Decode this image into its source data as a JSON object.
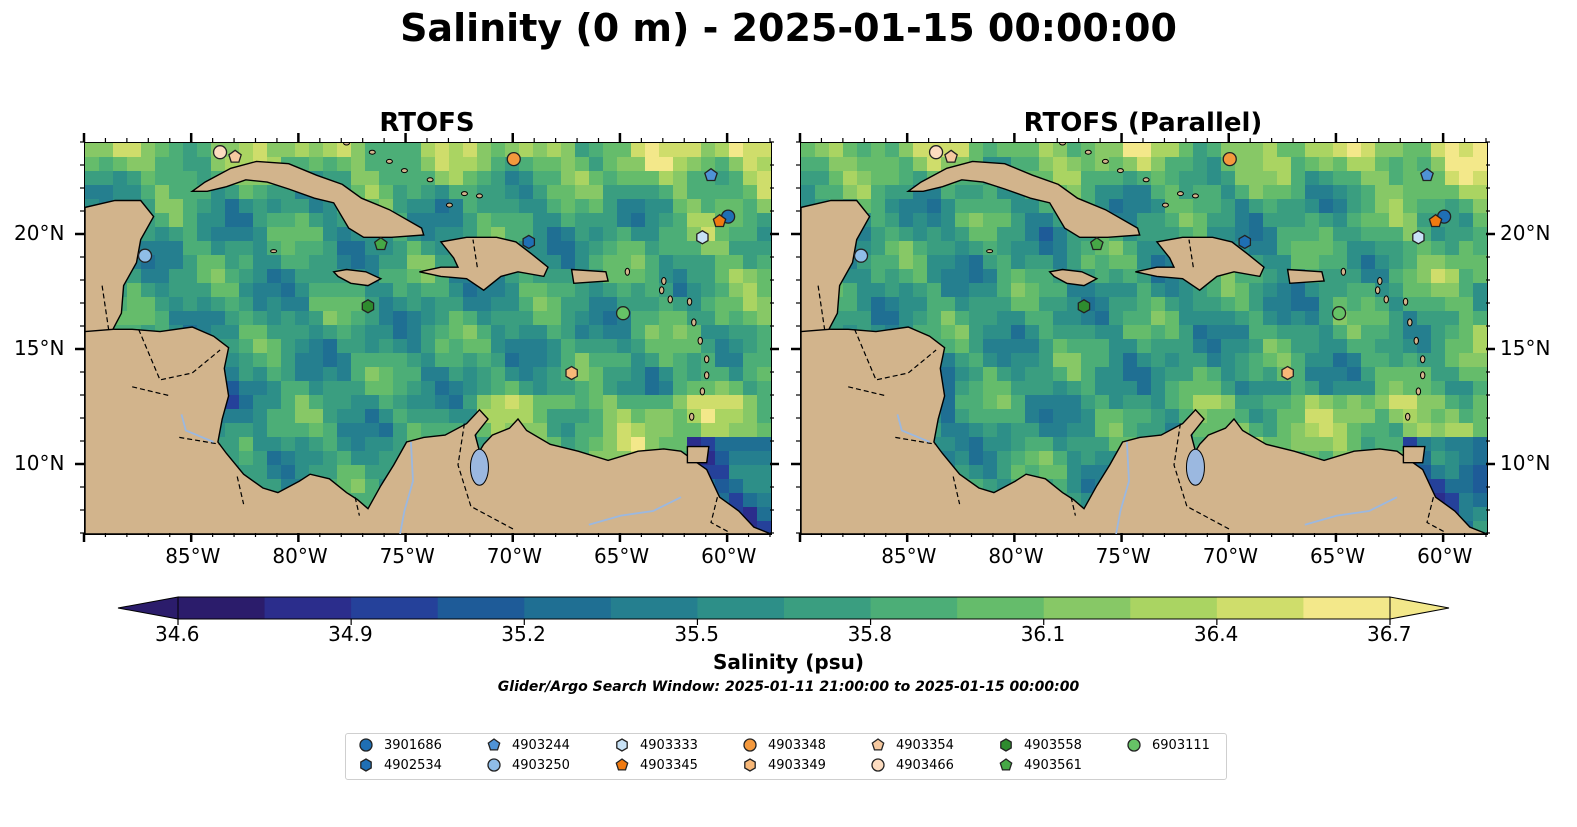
{
  "title": "Salinity (0 m) - 2025-01-15 00:00:00",
  "panels": [
    {
      "title": "RTOFS"
    },
    {
      "title": "RTOFS (Parallel)"
    }
  ],
  "map": {
    "lon_range": [
      -90,
      -58
    ],
    "lat_range": [
      7,
      24
    ],
    "lon_ticks": [
      "85°W",
      "80°W",
      "75°W",
      "70°W",
      "65°W",
      "60°W"
    ],
    "lat_ticks": [
      "20°N",
      "15°N",
      "10°N"
    ],
    "colors": {
      "land": "#d2b48c",
      "ocean_mid": "#2f8f88",
      "ocean_high": "#6cc06a",
      "ocean_max": "#f3e88a",
      "ocean_min": "#2b1c6b",
      "lake": "#9bb8e0"
    }
  },
  "colorbar": {
    "label": "Salinity (psu)",
    "ticks": [
      "34.6",
      "34.9",
      "35.2",
      "35.5",
      "35.8",
      "36.1",
      "36.4",
      "36.7"
    ],
    "min": 34.6,
    "max": 36.7,
    "colors": [
      "#2b1c6b",
      "#2b2d8c",
      "#25419a",
      "#1e5b98",
      "#1f6f93",
      "#257f8f",
      "#2d8f88",
      "#3a9e80",
      "#4cae77",
      "#65bc6b",
      "#87c866",
      "#aad462",
      "#cfdd6b",
      "#f3e88a"
    ]
  },
  "search_window": "Glider/Argo Search Window: 2025-01-11 21:00:00 to 2025-01-15 00:00:00",
  "legend": [
    {
      "id": "3901686",
      "shape": "circle",
      "color": "#1f6fb4"
    },
    {
      "id": "4902534",
      "shape": "hexagon",
      "color": "#1f6fb4"
    },
    {
      "id": "4903244",
      "shape": "pentagon",
      "color": "#4f93d6"
    },
    {
      "id": "4903250",
      "shape": "circle",
      "color": "#8fbde8"
    },
    {
      "id": "4903333",
      "shape": "hexagon",
      "color": "#c8e2f6"
    },
    {
      "id": "4903345",
      "shape": "pentagon",
      "color": "#f07a10"
    },
    {
      "id": "4903348",
      "shape": "circle",
      "color": "#f4993d"
    },
    {
      "id": "4903349",
      "shape": "hexagon",
      "color": "#f8b878"
    },
    {
      "id": "4903354",
      "shape": "pentagon",
      "color": "#f6c9a0"
    },
    {
      "id": "4903466",
      "shape": "circle",
      "color": "#fcdcc0"
    },
    {
      "id": "4903558",
      "shape": "hexagon",
      "color": "#2e8b2e"
    },
    {
      "id": "4903561",
      "shape": "pentagon",
      "color": "#46a846"
    },
    {
      "id": "6903111",
      "shape": "circle",
      "color": "#66c266"
    }
  ],
  "floats": [
    {
      "id": "4903466",
      "lon": -83.7,
      "lat": 23.6
    },
    {
      "id": "4903354",
      "lon": -83.0,
      "lat": 23.4
    },
    {
      "id": "4903348",
      "lon": -70.0,
      "lat": 23.3
    },
    {
      "id": "4903244",
      "lon": -60.8,
      "lat": 22.6
    },
    {
      "id": "3901686",
      "lon": -60.0,
      "lat": 20.8
    },
    {
      "id": "4903345",
      "lon": -60.4,
      "lat": 20.6
    },
    {
      "id": "4903333",
      "lon": -61.2,
      "lat": 19.9
    },
    {
      "id": "4902534",
      "lon": -69.3,
      "lat": 19.7
    },
    {
      "id": "4903561",
      "lon": -76.2,
      "lat": 19.6
    },
    {
      "id": "4903250",
      "lon": -87.2,
      "lat": 19.1
    },
    {
      "id": "4903558",
      "lon": -76.8,
      "lat": 16.9
    },
    {
      "id": "6903111",
      "lon": -64.9,
      "lat": 16.6
    },
    {
      "id": "4903349",
      "lon": -67.3,
      "lat": 14.0
    }
  ]
}
